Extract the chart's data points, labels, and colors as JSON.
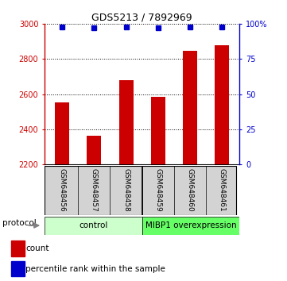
{
  "title": "GDS5213 / 7892969",
  "samples": [
    "GSM648456",
    "GSM648457",
    "GSM648458",
    "GSM648459",
    "GSM648460",
    "GSM648461"
  ],
  "counts": [
    2555,
    2365,
    2680,
    2585,
    2845,
    2880
  ],
  "percentile_ranks": [
    98,
    97,
    98,
    97,
    98,
    98
  ],
  "ylim_left": [
    2200,
    3000
  ],
  "ylim_right": [
    0,
    100
  ],
  "yticks_left": [
    2200,
    2400,
    2600,
    2800,
    3000
  ],
  "yticks_right": [
    0,
    25,
    50,
    75,
    100
  ],
  "bar_color": "#cc0000",
  "dot_color": "#0000cc",
  "bar_width": 0.45,
  "group_control_label": "control",
  "group_control_color": "#ccffcc",
  "group_mibp_label": "MIBP1 overexpression",
  "group_mibp_color": "#66ff66",
  "protocol_label": "protocol",
  "legend_count_label": "count",
  "legend_percentile_label": "percentile rank within the sample",
  "tick_label_color_left": "#cc0000",
  "tick_label_color_right": "#0000cc",
  "sample_box_color": "#d3d3d3"
}
